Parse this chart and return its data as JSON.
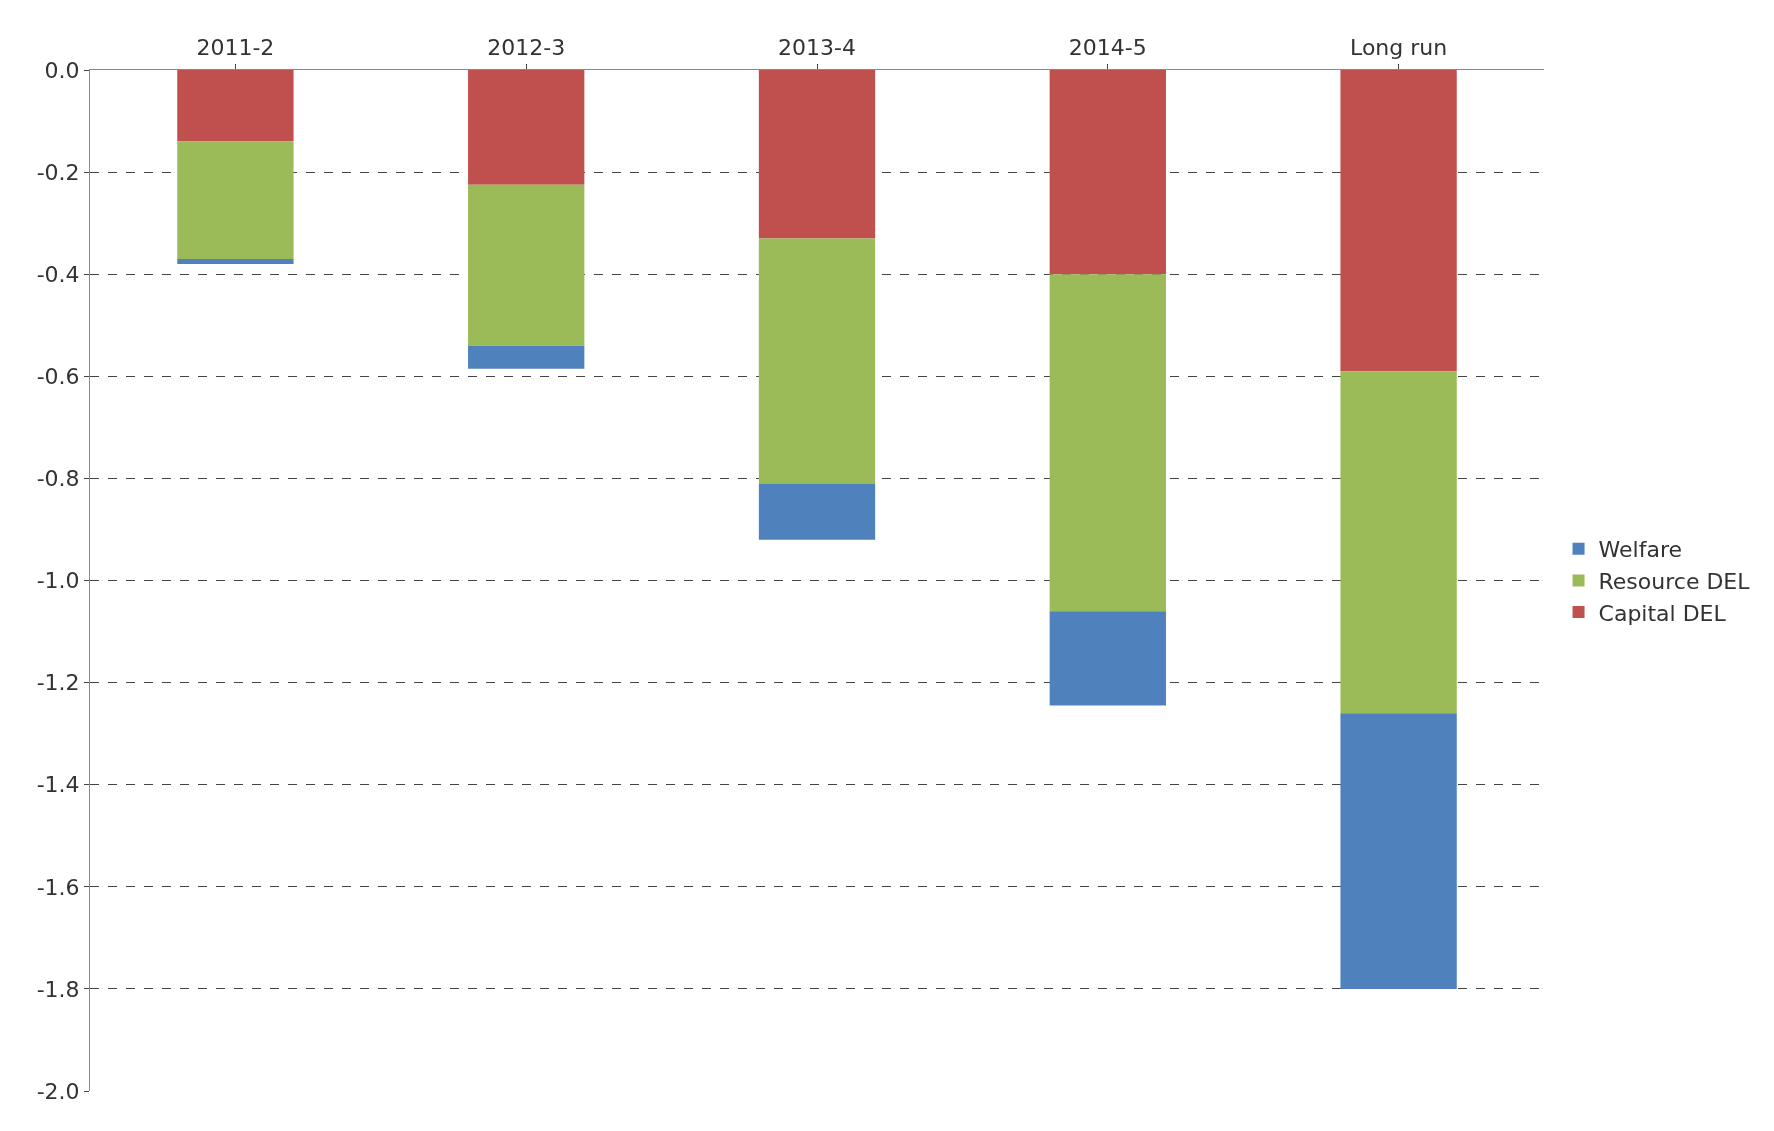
{
  "chart_data": {
    "type": "bar",
    "stacked": true,
    "categories": [
      "2011-2",
      "2012-3",
      "2013-4",
      "2014-5",
      "Long run"
    ],
    "series": [
      {
        "name": "Capital DEL",
        "color": "#c0504d",
        "values": [
          -0.14,
          -0.225,
          -0.33,
          -0.4,
          -0.59
        ]
      },
      {
        "name": "Resource DEL",
        "color": "#9bbb59",
        "values": [
          -0.23,
          -0.315,
          -0.48,
          -0.66,
          -0.67
        ]
      },
      {
        "name": "Welfare",
        "color": "#4f81bd",
        "values": [
          -0.01,
          -0.045,
          -0.11,
          -0.185,
          -0.54
        ]
      }
    ],
    "ylim": [
      -2.0,
      0.0
    ],
    "yticks": [
      {
        "value": 0,
        "label": "0.0"
      },
      -0.2,
      -0.4,
      -0.6,
      -0.8,
      {
        "value": -1.0,
        "label": "-1.0"
      },
      -1.2,
      -1.4,
      -1.6,
      -1.8,
      {
        "value": -2.0,
        "label": "-2.0"
      }
    ],
    "grid": "y",
    "line_style": "dashed",
    "legend": "right"
  }
}
